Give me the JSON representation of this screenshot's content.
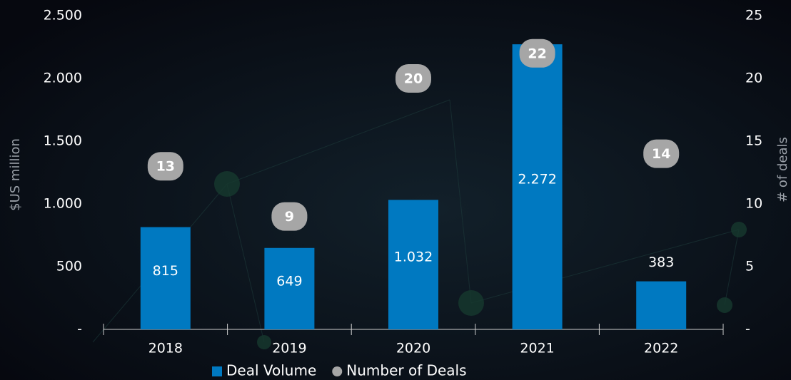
{
  "chart_data": {
    "type": "bar",
    "categories": [
      "2018",
      "2019",
      "2020",
      "2021",
      "2022"
    ],
    "series": [
      {
        "name": "Deal Volume",
        "color": "#0079c1",
        "values": [
          815,
          649,
          1032,
          2272,
          383
        ],
        "value_labels": [
          "815",
          "649",
          "1.032",
          "2.272",
          "383"
        ]
      },
      {
        "name": "Number of Deals",
        "color": "#a6a6a6",
        "axis": "y2",
        "values": [
          13,
          9,
          20,
          22,
          14
        ]
      }
    ],
    "y_label": "$US million",
    "y2_label": "# of deals",
    "ylim": [
      0,
      2500
    ],
    "yticks": [
      {
        "value": 0,
        "label": "-"
      },
      500,
      {
        "value": 1000,
        "label": "1.000"
      },
      {
        "value": 1500,
        "label": "1.500"
      },
      {
        "value": 2000,
        "label": "2.000"
      },
      {
        "value": 2500,
        "label": "2.500"
      }
    ],
    "y2lim": [
      0,
      25
    ],
    "y2ticks": [
      {
        "value": 0,
        "label": "-"
      },
      5,
      10,
      15,
      20,
      25
    ],
    "grid": false
  }
}
